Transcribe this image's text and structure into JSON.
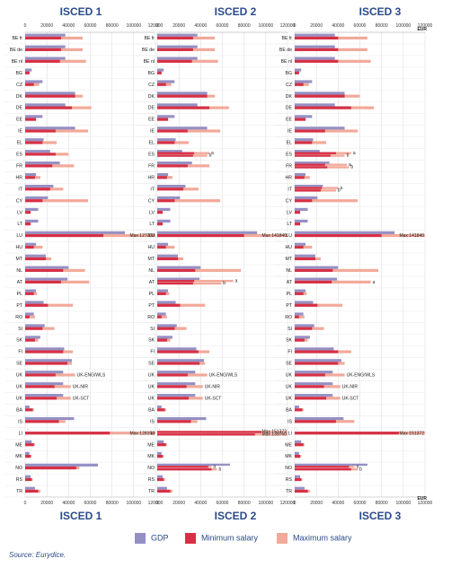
{
  "panels": [
    {
      "title": "ISCED 1"
    },
    {
      "title": "ISCED 2"
    },
    {
      "title": "ISCED 3"
    }
  ],
  "axis": {
    "ticks": [
      0,
      20000,
      40000,
      60000,
      80000,
      100000,
      120000
    ],
    "unit": "EUR"
  },
  "legend": {
    "gdp": "GDP",
    "min": "Minimum salary",
    "max": "Maximum salary"
  },
  "source": "Source: Eurydice.",
  "colors": {
    "gdp": "#9590c4",
    "min": "#d63046",
    "max": "#f2a99a",
    "title": "#2a4a8a"
  },
  "chart_data": [
    {
      "type": "bar",
      "title": "ISCED 1",
      "xlim": [
        0,
        120000
      ],
      "rows": [
        {
          "label": "BE fr",
          "gdp": 37000,
          "min": 33000,
          "max": 53000
        },
        {
          "label": "BE de",
          "gdp": 37000,
          "min": 33000,
          "max": 53000
        },
        {
          "label": "BE nl",
          "gdp": 37000,
          "min": 32000,
          "max": 56000
        },
        {
          "label": "BG",
          "gdp": 6000,
          "min": 4000,
          "max": 4000
        },
        {
          "label": "CZ",
          "gdp": 16000,
          "min": 8000,
          "max": 13000
        },
        {
          "label": "DK",
          "gdp": 46000,
          "min": 46000,
          "max": 53000
        },
        {
          "label": "DE",
          "gdp": 37000,
          "min": 43000,
          "max": 61000
        },
        {
          "label": "EE",
          "gdp": 16000,
          "min": 10000,
          "max": 10000
        },
        {
          "label": "IE",
          "gdp": 46000,
          "min": 28000,
          "max": 58000
        },
        {
          "label": "EL",
          "gdp": 17000,
          "min": 16000,
          "max": 29000
        },
        {
          "label": "ES",
          "gdp": 23000,
          "min": 28000,
          "max": 40000
        },
        {
          "label": "FR",
          "gdp": 32000,
          "min": 25000,
          "max": 45000
        },
        {
          "label": "HR",
          "gdp": 10000,
          "min": 9000,
          "max": 14000
        },
        {
          "label": "IT",
          "gdp": 26000,
          "min": 23000,
          "max": 35000
        },
        {
          "label": "CY",
          "gdp": 21000,
          "min": 16000,
          "max": 58000
        },
        {
          "label": "LV",
          "gdp": 12000,
          "min": 5000,
          "max": 5000
        },
        {
          "label": "LT",
          "gdp": 12000,
          "min": 5000,
          "max": 5000
        },
        {
          "label": "LU",
          "gdp": 92000,
          "min": 72000,
          "max": 127200,
          "note": "Max 127200"
        },
        {
          "label": "HU",
          "gdp": 10000,
          "min": 8000,
          "max": 16000
        },
        {
          "label": "MT",
          "gdp": 19000,
          "min": 19000,
          "max": 24000
        },
        {
          "label": "NL",
          "gdp": 40000,
          "min": 35000,
          "max": 55000
        },
        {
          "label": "AT",
          "gdp": 39000,
          "min": 33000,
          "max": 59000
        },
        {
          "label": "PL",
          "gdp": 10000,
          "min": 8000,
          "max": 11000
        },
        {
          "label": "PT",
          "gdp": 17000,
          "min": 21000,
          "max": 44000
        },
        {
          "label": "RO",
          "gdp": 8000,
          "min": 4000,
          "max": 9000
        },
        {
          "label": "SI",
          "gdp": 18000,
          "min": 16000,
          "max": 27000
        },
        {
          "label": "SK",
          "gdp": 14000,
          "min": 9000,
          "max": 12000
        },
        {
          "label": "FI",
          "gdp": 36000,
          "min": 35000,
          "max": 44000
        },
        {
          "label": "SE",
          "gdp": 43000,
          "min": 39000,
          "max": 43000
        },
        {
          "label": "UK",
          "gdp": 35000,
          "min": 28000,
          "max": 46000,
          "note": "UK-ENG/WLS"
        },
        {
          "label": "UK",
          "gdp": 35000,
          "min": 27000,
          "max": 42000,
          "note": "UK-NIR"
        },
        {
          "label": "UK",
          "gdp": 35000,
          "min": 29000,
          "max": 42000,
          "note": "UK-SCT"
        },
        {
          "label": "BA",
          "gdp": 4000,
          "min": 7000,
          "max": 8000
        },
        {
          "label": "IS",
          "gdp": 45000,
          "min": 31000,
          "max": 37000
        },
        {
          "label": "LI",
          "gdp": 0,
          "min": 78000,
          "max": 128158,
          "note": "Max 128158",
          "sym": ":"
        },
        {
          "label": "ME",
          "gdp": 6000,
          "min": 8000,
          "max": 9000
        },
        {
          "label": "MK",
          "gdp": 4000,
          "min": 5000,
          "max": 6000
        },
        {
          "label": "NO",
          "gdp": 67000,
          "min": 47000,
          "max": 50000
        },
        {
          "label": "RS",
          "gdp": 5000,
          "min": 6000,
          "max": 7000
        },
        {
          "label": "TR",
          "gdp": 9000,
          "min": 12000,
          "max": 14000
        }
      ]
    },
    {
      "type": "bar",
      "title": "ISCED 2",
      "xlim": [
        0,
        120000
      ],
      "rows": [
        {
          "label": "BE fr",
          "gdp": 37000,
          "min": 33000,
          "max": 53000
        },
        {
          "label": "BE de",
          "gdp": 37000,
          "min": 33000,
          "max": 53000
        },
        {
          "label": "BE nl",
          "gdp": 37000,
          "min": 32000,
          "max": 56000
        },
        {
          "label": "BG",
          "gdp": 6000,
          "min": 4000,
          "max": 4000
        },
        {
          "label": "CZ",
          "gdp": 16000,
          "min": 8000,
          "max": 13000
        },
        {
          "label": "DK",
          "gdp": 46000,
          "min": 46000,
          "max": 53000
        },
        {
          "label": "DE",
          "gdp": 37000,
          "min": 48000,
          "max": 66000
        },
        {
          "label": "EE",
          "gdp": 16000,
          "min": 10000,
          "max": 10000
        },
        {
          "label": "IE",
          "gdp": 46000,
          "min": 28000,
          "max": 58000
        },
        {
          "label": "EL",
          "gdp": 17000,
          "min": 16000,
          "max": 29000
        },
        {
          "label": "ES",
          "gdp": 23000,
          "min": 34000,
          "max": 48000,
          "min2": 33000,
          "max2": 46000,
          "note": "a",
          "note2": "b"
        },
        {
          "label": "FR",
          "gdp": 32000,
          "min": 28000,
          "max": 48000
        },
        {
          "label": "HR",
          "gdp": 10000,
          "min": 9000,
          "max": 14000
        },
        {
          "label": "IT",
          "gdp": 26000,
          "min": 24000,
          "max": 38000
        },
        {
          "label": "CY",
          "gdp": 21000,
          "min": 16000,
          "max": 58000
        },
        {
          "label": "LV",
          "gdp": 12000,
          "min": 5000,
          "max": 5000
        },
        {
          "label": "LT",
          "gdp": 12000,
          "min": 5000,
          "max": 5000
        },
        {
          "label": "LU",
          "gdp": 92000,
          "min": 80000,
          "max": 141840,
          "note": "Max 141840"
        },
        {
          "label": "HU",
          "gdp": 10000,
          "min": 8000,
          "max": 16000
        },
        {
          "label": "MT",
          "gdp": 19000,
          "min": 19000,
          "max": 24000
        },
        {
          "label": "NL",
          "gdp": 40000,
          "min": 35000,
          "max": 77000
        },
        {
          "label": "AT",
          "gdp": 39000,
          "min": 34000,
          "max": 70000,
          "min2": 33000,
          "max2": 59000,
          "note": "a",
          "note2": "b"
        },
        {
          "label": "PL",
          "gdp": 10000,
          "min": 8000,
          "max": 11000
        },
        {
          "label": "PT",
          "gdp": 17000,
          "min": 21000,
          "max": 44000
        },
        {
          "label": "RO",
          "gdp": 8000,
          "min": 4000,
          "max": 9000
        },
        {
          "label": "SI",
          "gdp": 18000,
          "min": 16000,
          "max": 27000
        },
        {
          "label": "SK",
          "gdp": 14000,
          "min": 9000,
          "max": 12000
        },
        {
          "label": "FI",
          "gdp": 36000,
          "min": 38000,
          "max": 48000
        },
        {
          "label": "SE",
          "gdp": 43000,
          "min": 39000,
          "max": 44000
        },
        {
          "label": "UK",
          "gdp": 35000,
          "min": 28000,
          "max": 46000,
          "note": "UK-ENG/WLS"
        },
        {
          "label": "UK",
          "gdp": 35000,
          "min": 27000,
          "max": 42000,
          "note": "UK-NIR"
        },
        {
          "label": "UK",
          "gdp": 35000,
          "min": 29000,
          "max": 42000,
          "note": "UK-SCT"
        },
        {
          "label": "BA",
          "gdp": 4000,
          "min": 7000,
          "max": 8000
        },
        {
          "label": "IS",
          "gdp": 45000,
          "min": 31000,
          "max": 37000
        },
        {
          "label": "LI",
          "gdp": 0,
          "min": 96000,
          "max": 151372,
          "min2": 90000,
          "max2": 139760,
          "note": "Max 151372",
          "note2": "Max 139760",
          "sym": ":"
        },
        {
          "label": "ME",
          "gdp": 6000,
          "min": 8000,
          "max": 9000
        },
        {
          "label": "MK",
          "gdp": 4000,
          "min": 5000,
          "max": 6000
        },
        {
          "label": "NO",
          "gdp": 67000,
          "min": 47000,
          "max": 50000,
          "min2": 50000,
          "max2": 55000,
          "note": "a",
          "note2": "b"
        },
        {
          "label": "RS",
          "gdp": 5000,
          "min": 6000,
          "max": 7000
        },
        {
          "label": "TR",
          "gdp": 9000,
          "min": 12000,
          "max": 14000
        }
      ]
    },
    {
      "type": "bar",
      "title": "ISCED 3",
      "xlim": [
        0,
        120000
      ],
      "rows": [
        {
          "label": "BE fr",
          "gdp": 37000,
          "min": 40000,
          "max": 67000
        },
        {
          "label": "BE de",
          "gdp": 37000,
          "min": 40000,
          "max": 67000
        },
        {
          "label": "BE nl",
          "gdp": 37000,
          "min": 40000,
          "max": 70000
        },
        {
          "label": "BG",
          "gdp": 6000,
          "min": 4000,
          "max": 4000
        },
        {
          "label": "CZ",
          "gdp": 16000,
          "min": 8000,
          "max": 13000
        },
        {
          "label": "DK",
          "gdp": 46000,
          "min": 46000,
          "max": 60000
        },
        {
          "label": "DE",
          "gdp": 37000,
          "min": 52000,
          "max": 73000
        },
        {
          "label": "EE",
          "gdp": 16000,
          "min": 10000,
          "max": 10000
        },
        {
          "label": "IE",
          "gdp": 46000,
          "min": 28000,
          "max": 58000
        },
        {
          "label": "EL",
          "gdp": 17000,
          "min": 16000,
          "max": 29000
        },
        {
          "label": "ES",
          "gdp": 23000,
          "min": 38000,
          "max": 52000,
          "min2": 33000,
          "max2": 46000,
          "note": "a",
          "note2": "b"
        },
        {
          "label": "FR",
          "gdp": 32000,
          "min": 28000,
          "max": 48000,
          "min2": 30000,
          "max2": 50000,
          "note": "a",
          "note2": "b"
        },
        {
          "label": "HR",
          "gdp": 10000,
          "min": 9000,
          "max": 14000
        },
        {
          "label": "IT",
          "gdp": 26000,
          "min": 25000,
          "max": 40000,
          "min2": 24000,
          "max2": 38000,
          "note": "a",
          "note2": "b"
        },
        {
          "label": "CY",
          "gdp": 21000,
          "min": 16000,
          "max": 58000
        },
        {
          "label": "LV",
          "gdp": 12000,
          "min": 5000,
          "max": 5000
        },
        {
          "label": "LT",
          "gdp": 12000,
          "min": 5000,
          "max": 5000
        },
        {
          "label": "LU",
          "gdp": 92000,
          "min": 80000,
          "max": 141840,
          "note": "Max 141840"
        },
        {
          "label": "HU",
          "gdp": 10000,
          "min": 8000,
          "max": 16000
        },
        {
          "label": "MT",
          "gdp": 19000,
          "min": 19000,
          "max": 24000
        },
        {
          "label": "NL",
          "gdp": 40000,
          "min": 35000,
          "max": 77000
        },
        {
          "label": "AT",
          "gdp": 39000,
          "min": 34000,
          "max": 70000,
          "note": "a"
        },
        {
          "label": "PL",
          "gdp": 10000,
          "min": 8000,
          "max": 11000
        },
        {
          "label": "PT",
          "gdp": 17000,
          "min": 21000,
          "max": 44000
        },
        {
          "label": "RO",
          "gdp": 8000,
          "min": 4000,
          "max": 9000
        },
        {
          "label": "SI",
          "gdp": 18000,
          "min": 16000,
          "max": 27000
        },
        {
          "label": "SK",
          "gdp": 14000,
          "min": 9000,
          "max": 12000
        },
        {
          "label": "FI",
          "gdp": 36000,
          "min": 40000,
          "max": 52000
        },
        {
          "label": "SE",
          "gdp": 43000,
          "min": 40000,
          "max": 46000
        },
        {
          "label": "UK",
          "gdp": 35000,
          "min": 28000,
          "max": 46000,
          "note": "UK-ENG/WLS"
        },
        {
          "label": "UK",
          "gdp": 35000,
          "min": 27000,
          "max": 42000,
          "note": "UK-NIR"
        },
        {
          "label": "UK",
          "gdp": 35000,
          "min": 29000,
          "max": 42000,
          "note": "UK-SCT"
        },
        {
          "label": "BA",
          "gdp": 4000,
          "min": 7000,
          "max": 8000
        },
        {
          "label": "IS",
          "gdp": 45000,
          "min": 38000,
          "max": 55000
        },
        {
          "label": "LI",
          "gdp": 0,
          "min": 96000,
          "max": 151372,
          "note": "Max 151372",
          "sym": ":"
        },
        {
          "label": "ME",
          "gdp": 6000,
          "min": 8000,
          "max": 9000
        },
        {
          "label": "MK",
          "gdp": 4000,
          "min": 5000,
          "max": 6000
        },
        {
          "label": "NO",
          "gdp": 67000,
          "min": 50000,
          "max": 55000,
          "min2": 52000,
          "max2": 58000,
          "note": "a",
          "note2": "b"
        },
        {
          "label": "RS",
          "gdp": 5000,
          "min": 6000,
          "max": 7000
        },
        {
          "label": "TR",
          "gdp": 9000,
          "min": 12000,
          "max": 14000
        }
      ]
    }
  ]
}
